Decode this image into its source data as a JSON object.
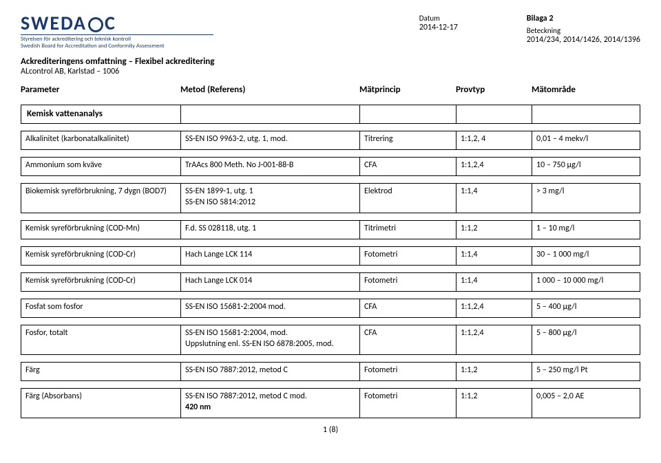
{
  "header": {
    "logo_name": "SWEDAC",
    "tagline1": "Styrelsen för ackreditering och teknisk kontroll",
    "tagline2": "Swedish Board for Accreditation and Conformity Assessment",
    "datum_label": "Datum",
    "datum_value": "2014-12-17",
    "bilaga": "Bilaga 2",
    "beteckning_label": "Beteckning",
    "beteckning_value": "2014/234, 2014/1426, 2014/1396",
    "ack_line": "Ackrediteringens omfattning – Flexibel ackreditering",
    "sub_line": "ALcontrol AB, Karlstad – 1006"
  },
  "columns": {
    "c1": "Parameter",
    "c2": "Metod (Referens)",
    "c3": "Mätprincip",
    "c4": "Provtyp",
    "c5": "Mätområde"
  },
  "section_title": "Kemisk vattenanalys",
  "rows": [
    {
      "p": "Alkalinitet (karbonatalkalinitet)",
      "m": "SS-EN ISO 9963-2, utg. 1, mod.",
      "pr": "Titrering",
      "pt": "1:1,2, 4",
      "mo": "0,01 – 4 mekv/l",
      "tall": false
    },
    {
      "p": "Ammonium som kväve",
      "m": "TrAAcs 800 Meth. No J-001-88-B",
      "pr": "CFA",
      "pt": "1:1,2,4",
      "mo": "10 – 750 µg/l",
      "tall": false
    },
    {
      "p": "Biokemisk syreförbrukning, 7 dygn (BOD7)",
      "m": "SS-EN 1899-1, utg. 1\nSS-EN ISO 5814:2012",
      "pr": "Elektrod",
      "pt": "1:1,4",
      "mo": "> 3 mg/l",
      "tall": true
    },
    {
      "p": "Kemisk syreförbrukning (COD-Mn)",
      "m": "F.d. SS 028118, utg. 1",
      "pr": "Titrimetri",
      "pt": "1:1,2",
      "mo": "1 – 10 mg/l",
      "tall": false
    },
    {
      "p": "Kemisk syreförbrukning (COD-Cr)",
      "m": "Hach Lange LCK 114",
      "pr": "Fotometri",
      "pt": "1:1,4",
      "mo": "30 – 1 000 mg/l",
      "tall": false
    },
    {
      "p": "Kemisk syreförbrukning (COD-Cr)",
      "m": "Hach Lange LCK 014",
      "pr": "Fotometri",
      "pt": "1:1,4",
      "mo": "1 000 – 10 000 mg/l",
      "tall": false
    },
    {
      "p": "Fosfat som fosfor",
      "m": "SS-EN ISO 15681-2:2004 mod.",
      "pr": "CFA",
      "pt": "1:1,2,4",
      "mo": "5 – 400 µg/l",
      "tall": false
    },
    {
      "p": "Fosfor, totalt",
      "m": "SS-EN ISO 15681-2:2004, mod.\nUppslutning enl. SS-EN ISO 6878:2005, mod.",
      "pr": "CFA",
      "pt": "1:1,2,4",
      "mo": "5 – 800 µg/l",
      "tall": true
    },
    {
      "p": "Färg",
      "m": "SS-EN ISO 7887:2012, metod C",
      "pr": "Fotometri",
      "pt": "1:1,2",
      "mo": "5 – 250 mg/l Pt",
      "tall": false
    },
    {
      "p": "Färg (Absorbans)",
      "m": "SS-EN ISO 7887:2012, metod C mod.\n420 nm",
      "pr": "Fotometri",
      "pt": "1:1,2",
      "mo": "0,005 – 2,0 AE",
      "tall": true
    }
  ],
  "pager": "1 (8)"
}
